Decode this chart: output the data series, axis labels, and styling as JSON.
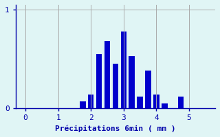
{
  "title": "",
  "xlabel": "Précipitations 6min ( mm )",
  "ylabel": "",
  "background_color": "#e0f5f5",
  "bar_color": "#0000cc",
  "grid_color": "#aaaaaa",
  "axis_color": "#0000aa",
  "tick_label_color": "#0000aa",
  "xlabel_color": "#0000aa",
  "bar_positions": [
    1.75,
    2.0,
    2.25,
    2.5,
    2.75,
    3.0,
    3.25,
    3.5,
    3.75,
    4.0,
    4.25,
    4.75
  ],
  "bar_heights": [
    0.07,
    0.14,
    0.55,
    0.68,
    0.45,
    0.78,
    0.53,
    0.12,
    0.38,
    0.14,
    0.05,
    0.12
  ],
  "bar_width": 0.18,
  "xlim": [
    -0.3,
    5.8
  ],
  "ylim": [
    0,
    1.05
  ],
  "xticks": [
    0,
    1,
    2,
    3,
    4,
    5
  ],
  "yticks": [
    0,
    1
  ],
  "figsize": [
    3.2,
    2.0
  ],
  "dpi": 100
}
